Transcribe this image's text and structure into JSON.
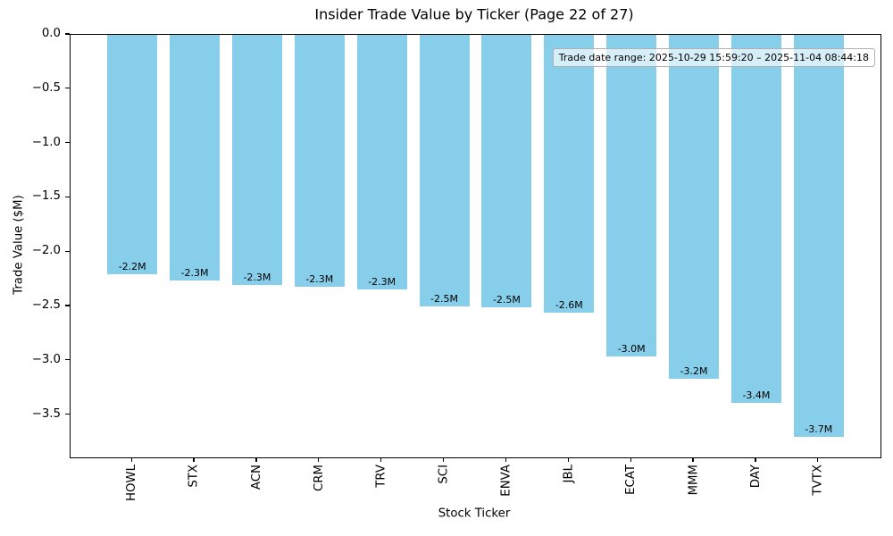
{
  "chart_data": {
    "type": "bar",
    "title": "Insider Trade Value by Ticker (Page 22 of 27)",
    "xlabel": "Stock Ticker",
    "ylabel": "Trade Value ($M)",
    "categories": [
      "HOWL",
      "STX",
      "ACN",
      "CRM",
      "TRV",
      "SCI",
      "ENVA",
      "JBL",
      "ECAT",
      "MMM",
      "DAY",
      "TVTX"
    ],
    "values": [
      -2.2,
      -2.26,
      -2.3,
      -2.32,
      -2.34,
      -2.5,
      -2.51,
      -2.56,
      -2.96,
      -3.17,
      -3.39,
      -3.7
    ],
    "bar_labels": [
      "-2.2M",
      "-2.3M",
      "-2.3M",
      "-2.3M",
      "-2.3M",
      "-2.5M",
      "-2.5M",
      "-2.6M",
      "-3.0M",
      "-3.2M",
      "-3.4M",
      "-3.7M"
    ],
    "bar_color": "#87CEEB",
    "ylim": [
      -3.89,
      0
    ],
    "yticks": [
      0.0,
      -0.5,
      -1.0,
      -1.5,
      -2.0,
      -2.5,
      -3.0,
      -3.5
    ],
    "ytick_labels": [
      "0.0",
      "−0.5",
      "−1.0",
      "−1.5",
      "−2.0",
      "−2.5",
      "−3.0",
      "−3.5"
    ],
    "annotation": "Trade date range: 2025-10-29 15:59:20 – 2025-11-04 08:44:18",
    "grid": false,
    "legend": null
  }
}
